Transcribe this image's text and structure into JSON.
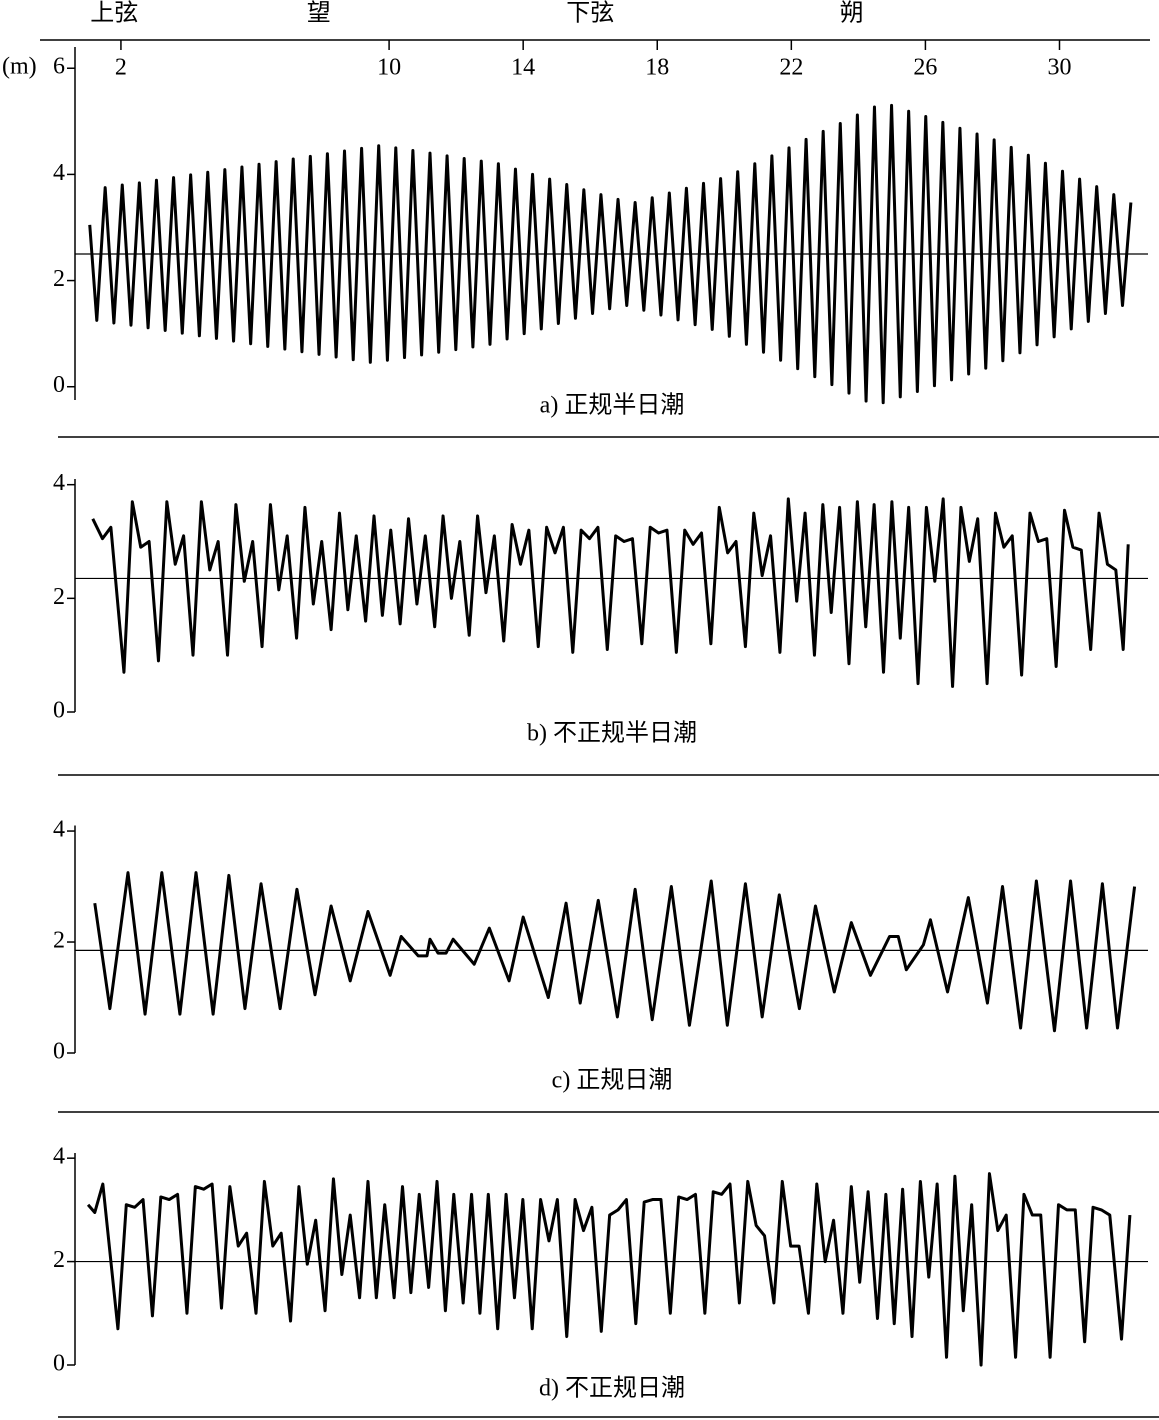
{
  "chart_data": [
    {
      "type": "line",
      "y_label": "(m)",
      "caption": "a) 正规半日潮",
      "annotations": [
        {
          "text": "上弦",
          "x": 1.8
        },
        {
          "text": "望",
          "x": 7.9
        },
        {
          "text": "下弦",
          "x": 16.0
        },
        {
          "text": "朔",
          "x": 23.8
        }
      ],
      "xlim": [
        0.6,
        32.7
      ],
      "xticks": [
        2,
        10,
        14,
        18,
        22,
        26,
        30
      ],
      "ylim": [
        -0.25,
        6.4
      ],
      "yticks": [
        0,
        2,
        4,
        6
      ],
      "mean_level": 2.5,
      "color": "#000000",
      "x": [
        1.07,
        1.28,
        1.53,
        1.79,
        2.04,
        2.3,
        2.55,
        2.81,
        3.06,
        3.32,
        3.57,
        3.83,
        4.08,
        4.34,
        4.59,
        4.85,
        5.1,
        5.36,
        5.61,
        5.87,
        6.12,
        6.38,
        6.63,
        6.89,
        7.14,
        7.4,
        7.65,
        7.91,
        8.16,
        8.42,
        8.67,
        8.93,
        9.18,
        9.44,
        9.69,
        9.95,
        10.2,
        10.46,
        10.71,
        10.97,
        11.22,
        11.48,
        11.73,
        11.99,
        12.24,
        12.5,
        12.75,
        13.01,
        13.26,
        13.52,
        13.77,
        14.03,
        14.28,
        14.54,
        14.79,
        15.05,
        15.3,
        15.56,
        15.81,
        16.07,
        16.32,
        16.58,
        16.83,
        17.09,
        17.34,
        17.6,
        17.85,
        18.11,
        18.36,
        18.62,
        18.87,
        19.13,
        19.38,
        19.64,
        19.89,
        20.15,
        20.4,
        20.66,
        20.91,
        21.17,
        21.42,
        21.68,
        21.93,
        22.19,
        22.44,
        22.7,
        22.95,
        23.21,
        23.46,
        23.72,
        23.97,
        24.23,
        24.48,
        24.74,
        24.99,
        25.25,
        25.5,
        25.76,
        26.01,
        26.27,
        26.52,
        26.78,
        27.03,
        27.29,
        27.54,
        27.8,
        28.05,
        28.31,
        28.56,
        28.82,
        29.07,
        29.33,
        29.58,
        29.84,
        30.09,
        30.35,
        30.6,
        30.86,
        31.11,
        31.37,
        31.62,
        31.88,
        32.13
      ],
      "values": [
        3.05,
        1.25,
        3.75,
        1.2,
        3.8,
        1.16,
        3.84,
        1.11,
        3.89,
        1.06,
        3.94,
        1.01,
        3.99,
        0.96,
        4.04,
        0.91,
        4.09,
        0.86,
        4.14,
        0.81,
        4.19,
        0.76,
        4.24,
        0.71,
        4.29,
        0.66,
        4.34,
        0.61,
        4.39,
        0.56,
        4.44,
        0.51,
        4.49,
        0.46,
        4.54,
        0.5,
        4.5,
        0.55,
        4.45,
        0.6,
        4.4,
        0.65,
        4.35,
        0.7,
        4.3,
        0.75,
        4.25,
        0.8,
        4.2,
        0.9,
        4.1,
        1.0,
        4.0,
        1.09,
        3.91,
        1.19,
        3.81,
        1.29,
        3.71,
        1.38,
        3.62,
        1.47,
        3.53,
        1.53,
        3.47,
        1.44,
        3.56,
        1.35,
        3.65,
        1.26,
        3.74,
        1.17,
        3.83,
        1.08,
        3.92,
        0.95,
        4.05,
        0.8,
        4.2,
        0.65,
        4.35,
        0.5,
        4.5,
        0.34,
        4.66,
        0.19,
        4.81,
        0.04,
        4.96,
        -0.12,
        5.12,
        -0.27,
        5.27,
        -0.3,
        5.3,
        -0.19,
        5.19,
        -0.09,
        5.09,
        0.02,
        4.98,
        0.13,
        4.87,
        0.24,
        4.76,
        0.35,
        4.65,
        0.49,
        4.51,
        0.64,
        4.36,
        0.79,
        4.21,
        0.94,
        4.06,
        1.09,
        3.91,
        1.23,
        3.77,
        1.38,
        3.62,
        1.53,
        3.47
      ]
    },
    {
      "type": "line",
      "caption": "b) 不正规半日潮",
      "xlim": [
        0.6,
        32.7
      ],
      "ylim": [
        0,
        4.1
      ],
      "yticks": [
        0,
        2,
        4
      ],
      "mean_level": 2.35,
      "color": "#000000",
      "x": [
        1.16,
        1.45,
        1.7,
        2.09,
        2.34,
        2.59,
        2.84,
        3.12,
        3.37,
        3.62,
        3.87,
        4.15,
        4.4,
        4.65,
        4.9,
        5.18,
        5.43,
        5.68,
        5.93,
        6.21,
        6.46,
        6.71,
        6.96,
        7.24,
        7.49,
        7.74,
        7.99,
        8.27,
        8.52,
        8.77,
        9.02,
        9.3,
        9.55,
        9.8,
        10.05,
        10.33,
        10.58,
        10.83,
        11.08,
        11.36,
        11.61,
        11.86,
        12.11,
        12.39,
        12.64,
        12.89,
        13.14,
        13.42,
        13.67,
        13.92,
        14.17,
        14.45,
        14.7,
        14.95,
        15.2,
        15.48,
        15.73,
        15.98,
        16.23,
        16.51,
        16.76,
        17.01,
        17.26,
        17.54,
        17.79,
        18.04,
        18.29,
        18.57,
        18.82,
        19.07,
        19.32,
        19.6,
        19.85,
        20.1,
        20.35,
        20.63,
        20.88,
        21.13,
        21.38,
        21.66,
        21.91,
        22.16,
        22.41,
        22.69,
        22.94,
        23.19,
        23.44,
        23.72,
        23.97,
        24.22,
        24.47,
        24.75,
        25,
        25.25,
        25.5,
        25.78,
        26.03,
        26.28,
        26.53,
        26.81,
        27.06,
        27.31,
        27.56,
        27.84,
        28.09,
        28.34,
        28.59,
        28.87,
        29.12,
        29.37,
        29.62,
        29.9,
        30.15,
        30.4,
        30.65,
        30.93,
        31.18,
        31.43,
        31.68,
        31.9,
        32.05
      ],
      "values": [
        3.4,
        3.05,
        3.25,
        0.7,
        3.7,
        2.9,
        3.0,
        0.9,
        3.7,
        2.6,
        3.1,
        1.0,
        3.7,
        2.5,
        3.0,
        1.0,
        3.65,
        2.3,
        3.0,
        1.15,
        3.65,
        2.15,
        3.1,
        1.3,
        3.6,
        1.9,
        3.0,
        1.45,
        3.5,
        1.8,
        3.1,
        1.6,
        3.45,
        1.7,
        3.2,
        1.55,
        3.4,
        1.9,
        3.1,
        1.5,
        3.45,
        2.0,
        3.0,
        1.35,
        3.45,
        2.1,
        3.1,
        1.25,
        3.3,
        2.6,
        3.2,
        1.15,
        3.25,
        2.8,
        3.25,
        1.05,
        3.2,
        3.05,
        3.25,
        1.1,
        3.1,
        3.0,
        3.05,
        1.2,
        3.25,
        3.15,
        3.2,
        1.05,
        3.2,
        2.95,
        3.15,
        1.2,
        3.6,
        2.8,
        3.0,
        1.15,
        3.5,
        2.4,
        3.1,
        1.05,
        3.75,
        1.95,
        3.5,
        1.0,
        3.65,
        1.75,
        3.6,
        0.85,
        3.7,
        1.5,
        3.65,
        0.7,
        3.7,
        1.3,
        3.6,
        0.5,
        3.6,
        2.3,
        3.75,
        0.45,
        3.6,
        2.65,
        3.4,
        0.5,
        3.5,
        2.9,
        3.1,
        0.65,
        3.5,
        3.0,
        3.05,
        0.8,
        3.55,
        2.9,
        2.85,
        1.1,
        3.5,
        2.6,
        2.5,
        1.1,
        2.95
      ]
    },
    {
      "type": "line",
      "caption": "c) 正规日潮",
      "xlim": [
        0.6,
        32.7
      ],
      "ylim": [
        0,
        4.1
      ],
      "yticks": [
        0,
        2,
        4
      ],
      "mean_level": 1.85,
      "color": "#000000",
      "x": [
        1.22,
        1.67,
        2.21,
        2.72,
        3.22,
        3.76,
        4.24,
        4.75,
        5.22,
        5.7,
        6.18,
        6.75,
        7.25,
        7.79,
        8.27,
        8.84,
        9.37,
        10.03,
        10.36,
        10.87,
        11.13,
        11.22,
        11.46,
        11.7,
        11.91,
        12.54,
        12.99,
        13.58,
        14,
        14.75,
        15.28,
        15.7,
        16.24,
        16.81,
        17.34,
        17.85,
        18.42,
        18.96,
        19.61,
        20.09,
        20.63,
        21.13,
        21.64,
        22.24,
        22.72,
        23.28,
        23.79,
        24.36,
        24.93,
        25.19,
        25.43,
        25.94,
        26.15,
        26.66,
        27.28,
        27.85,
        28.3,
        28.84,
        29.31,
        29.85,
        30.33,
        30.81,
        31.28,
        31.73,
        32.24
      ],
      "values": [
        2.7,
        0.8,
        3.25,
        0.7,
        3.25,
        0.7,
        3.25,
        0.7,
        3.2,
        0.8,
        3.05,
        0.8,
        2.95,
        1.05,
        2.65,
        1.3,
        2.55,
        1.4,
        2.1,
        1.75,
        1.75,
        2.05,
        1.8,
        1.8,
        2.05,
        1.6,
        2.25,
        1.3,
        2.45,
        1.0,
        2.7,
        0.9,
        2.75,
        0.65,
        2.95,
        0.6,
        3.0,
        0.5,
        3.1,
        0.5,
        3.05,
        0.65,
        2.85,
        0.8,
        2.65,
        1.1,
        2.35,
        1.4,
        2.1,
        2.1,
        1.5,
        1.95,
        2.4,
        1.1,
        2.8,
        0.9,
        3.0,
        0.45,
        3.1,
        0.4,
        3.1,
        0.45,
        3.05,
        0.45,
        3.0
      ]
    },
    {
      "type": "line",
      "caption": "d) 不正规日潮",
      "xlim": [
        0.6,
        32.7
      ],
      "ylim": [
        0,
        4.1
      ],
      "yticks": [
        0,
        2,
        4
      ],
      "mean_level": 2.0,
      "color": "#000000",
      "x": [
        1.02,
        1.22,
        1.46,
        1.91,
        2.16,
        2.41,
        2.66,
        2.94,
        3.19,
        3.44,
        3.69,
        3.97,
        4.22,
        4.47,
        4.72,
        5,
        5.25,
        5.5,
        5.75,
        6.03,
        6.28,
        6.53,
        6.78,
        7.06,
        7.31,
        7.56,
        7.81,
        8.09,
        8.34,
        8.59,
        8.84,
        9.12,
        9.37,
        9.62,
        9.87,
        10.15,
        10.4,
        10.65,
        10.9,
        11.18,
        11.43,
        11.68,
        11.93,
        12.21,
        12.46,
        12.71,
        12.96,
        13.24,
        13.49,
        13.74,
        13.99,
        14.27,
        14.52,
        14.77,
        15.02,
        15.3,
        15.55,
        15.8,
        16.05,
        16.33,
        16.58,
        16.83,
        17.08,
        17.36,
        17.61,
        17.86,
        18.11,
        18.39,
        18.64,
        18.89,
        19.14,
        19.42,
        19.67,
        19.92,
        20.17,
        20.45,
        20.7,
        20.95,
        21.2,
        21.48,
        21.73,
        21.98,
        22.23,
        22.51,
        22.76,
        23.01,
        23.26,
        23.54,
        23.79,
        24.04,
        24.29,
        24.57,
        24.82,
        25.07,
        25.32,
        25.6,
        25.85,
        26.1,
        26.35,
        26.63,
        26.88,
        27.13,
        27.38,
        27.66,
        27.91,
        28.16,
        28.41,
        28.69,
        28.94,
        29.19,
        29.44,
        29.72,
        29.97,
        30.22,
        30.47,
        30.75,
        31,
        31.25,
        31.5,
        31.85,
        32.1
      ],
      "values": [
        3.1,
        2.95,
        3.5,
        0.7,
        3.1,
        3.05,
        3.2,
        0.95,
        3.25,
        3.2,
        3.3,
        1.0,
        3.45,
        3.4,
        3.5,
        1.1,
        3.45,
        2.3,
        2.55,
        1.0,
        3.55,
        2.3,
        2.55,
        0.85,
        3.45,
        1.95,
        2.8,
        1.05,
        3.6,
        1.75,
        2.9,
        1.3,
        3.55,
        1.3,
        3.1,
        1.3,
        3.45,
        1.4,
        3.3,
        1.5,
        3.55,
        1.05,
        3.3,
        1.2,
        3.3,
        1.0,
        3.3,
        0.7,
        3.3,
        1.3,
        3.2,
        0.7,
        3.2,
        2.4,
        3.2,
        0.55,
        3.2,
        2.6,
        3.05,
        0.65,
        2.9,
        3.0,
        3.2,
        0.8,
        3.15,
        3.2,
        3.2,
        1.0,
        3.25,
        3.2,
        3.3,
        1.0,
        3.35,
        3.3,
        3.5,
        1.2,
        3.55,
        2.7,
        2.5,
        1.2,
        3.55,
        2.3,
        2.3,
        1.0,
        3.5,
        2.0,
        2.8,
        1.0,
        3.45,
        1.6,
        3.35,
        0.9,
        3.3,
        0.8,
        3.4,
        0.55,
        3.55,
        1.7,
        3.5,
        0.15,
        3.65,
        1.05,
        3.1,
        0.0,
        3.7,
        2.6,
        2.9,
        0.15,
        3.3,
        2.9,
        2.9,
        0.15,
        3.1,
        3.0,
        3.0,
        0.45,
        3.05,
        3.0,
        2.9,
        0.5,
        2.9
      ]
    }
  ]
}
